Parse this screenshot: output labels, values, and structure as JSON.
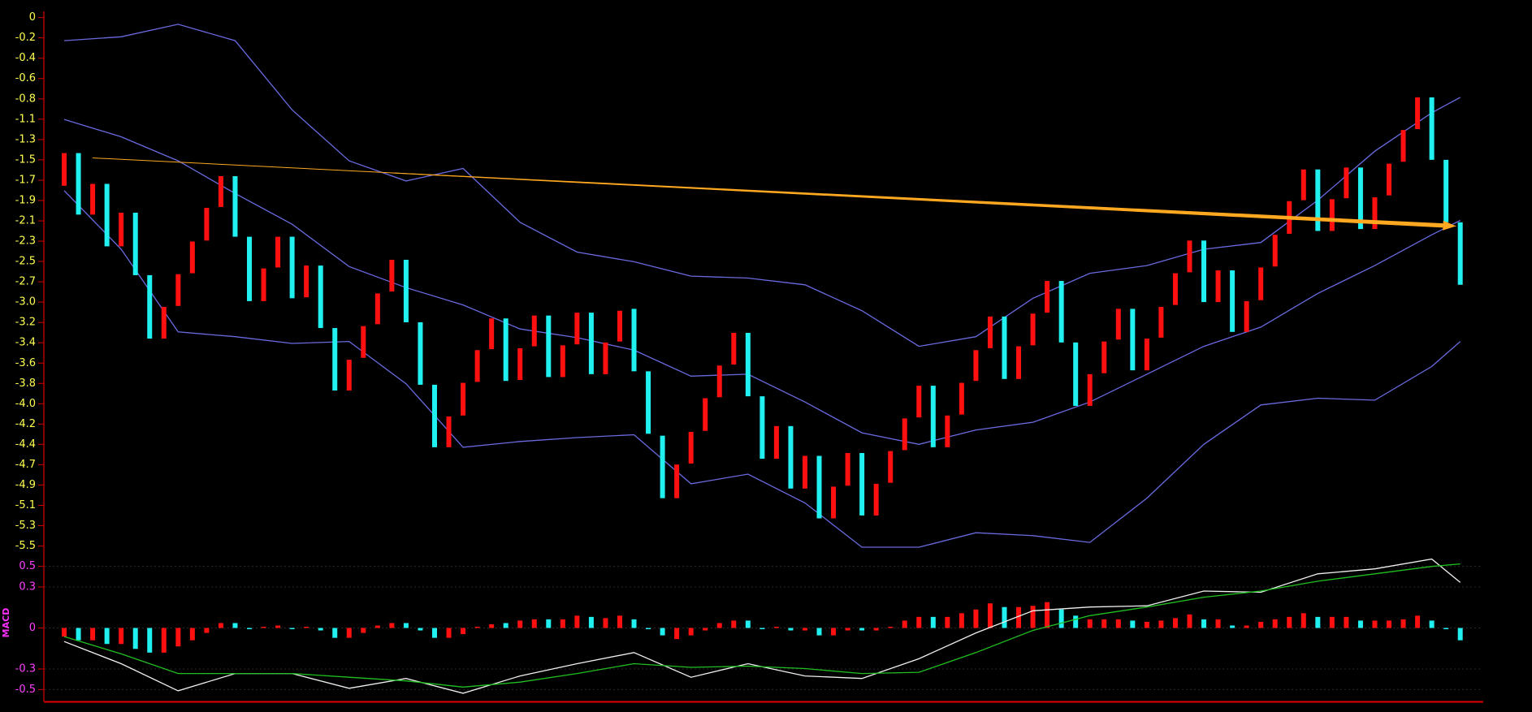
{
  "chart_data": [
    {
      "type": "candlestick",
      "xlim": [
        -0.8,
        99.5
      ],
      "ylim": [
        -5.7,
        0.1
      ],
      "yticks": [
        0,
        {
          "value": -0.211,
          "label": "-0.2"
        },
        {
          "value": -0.423,
          "label": "-0.4"
        },
        {
          "value": -0.634,
          "label": "-0.6"
        },
        {
          "value": -0.846,
          "label": "-0.8"
        },
        {
          "value": -1.057,
          "label": "-1.1"
        },
        {
          "value": -1.269,
          "label": "-1.3"
        },
        {
          "value": -1.48,
          "label": "-1.5"
        },
        {
          "value": -1.692,
          "label": "-1.7"
        },
        {
          "value": -1.903,
          "label": "-1.9"
        },
        {
          "value": -2.115,
          "label": "-2.1"
        },
        {
          "value": -2.326,
          "label": "-2.3"
        },
        {
          "value": -2.537,
          "label": "-2.5"
        },
        {
          "value": -2.749,
          "label": "-2.7"
        },
        {
          "value": -2.96,
          "label": "-3.0"
        },
        {
          "value": -3.172,
          "label": "-3.2"
        },
        {
          "value": -3.383,
          "label": "-3.4"
        },
        {
          "value": -3.595,
          "label": "-3.6"
        },
        {
          "value": -3.806,
          "label": "-3.8"
        },
        {
          "value": -4.018,
          "label": "-4.0"
        },
        {
          "value": -4.229,
          "label": "-4.2"
        },
        {
          "value": -4.44,
          "label": "-4.4"
        },
        {
          "value": -4.652,
          "label": "-4.7"
        },
        {
          "value": -4.863,
          "label": "-4.9"
        },
        {
          "value": -5.075,
          "label": "-5.1"
        },
        {
          "value": -5.286,
          "label": "-5.3"
        },
        {
          "value": -5.498,
          "label": "-5.5"
        }
      ],
      "tick_color": "#ffff50",
      "up_color": "#ff1010",
      "down_color": "#20f0f0",
      "open": [
        -1.75,
        -1.41,
        -2.05,
        -1.73,
        -2.38,
        -2.03,
        -2.68,
        -3.34,
        -3.0,
        -2.66,
        -2.32,
        -1.97,
        -1.65,
        -2.28,
        -2.95,
        -2.6,
        -2.28,
        -2.91,
        -2.58,
        -3.23,
        -3.88,
        -3.54,
        -3.19,
        -2.85,
        -2.52,
        -3.17,
        -3.82,
        -4.47,
        -4.14,
        -3.79,
        -3.45,
        -3.13,
        -3.77,
        -3.42,
        -3.1,
        -3.74,
        -3.4,
        -3.07,
        -3.71,
        -3.37,
        -3.03,
        -3.68,
        -4.35,
        -5.0,
        -4.64,
        -4.3,
        -3.95,
        -3.61,
        -3.28,
        -3.94,
        -4.59,
        -4.25,
        -4.9,
        -4.56,
        -5.21,
        -4.87,
        -4.53,
        -5.18,
        -4.84,
        -4.5,
        -4.16,
        -3.83,
        -4.47,
        -4.13,
        -3.78,
        -3.44,
        -3.11,
        -3.76,
        -3.41,
        -3.07,
        -2.74,
        -3.38,
        -4.04,
        -3.7,
        -3.35,
        -3.03,
        -3.67,
        -3.33,
        -2.99,
        -2.65,
        -2.32,
        -2.96,
        -2.63,
        -3.27,
        -2.94,
        -2.59,
        -2.25,
        -1.9,
        -1.58,
        -2.22,
        -1.88,
        -1.56,
        -2.2,
        -1.85,
        -1.5,
        -1.16,
        -0.83,
        -1.48,
        -2.13
      ],
      "close": [
        -1.41,
        -2.05,
        -1.73,
        -2.38,
        -2.03,
        -2.68,
        -3.34,
        -3.01,
        -2.67,
        -2.33,
        -1.98,
        -1.65,
        -2.28,
        -2.95,
        -2.61,
        -2.28,
        -2.92,
        -2.58,
        -3.23,
        -3.88,
        -3.56,
        -3.21,
        -2.87,
        -2.52,
        -3.17,
        -3.82,
        -4.47,
        -4.15,
        -3.8,
        -3.46,
        -3.13,
        -3.78,
        -3.44,
        -3.1,
        -3.74,
        -3.41,
        -3.07,
        -3.71,
        -3.38,
        -3.05,
        -3.68,
        -4.33,
        -5.0,
        -4.65,
        -4.31,
        -3.96,
        -3.62,
        -3.28,
        -3.94,
        -4.59,
        -4.25,
        -4.9,
        -4.56,
        -5.21,
        -4.88,
        -4.53,
        -5.18,
        -4.85,
        -4.51,
        -4.17,
        -3.83,
        -4.47,
        -4.14,
        -3.8,
        -3.46,
        -3.11,
        -3.76,
        -3.42,
        -3.08,
        -2.74,
        -3.38,
        -4.04,
        -3.71,
        -3.37,
        -3.03,
        -3.67,
        -3.34,
        -3.01,
        -2.66,
        -2.32,
        -2.96,
        -2.63,
        -3.27,
        -2.95,
        -2.6,
        -2.26,
        -1.91,
        -1.58,
        -2.22,
        -1.89,
        -1.56,
        -2.2,
        -1.87,
        -1.52,
        -1.17,
        -0.83,
        -1.48,
        -2.13,
        -2.78
      ],
      "series": [
        {
          "color": "#6a6ae0",
          "x": [
            0,
            4,
            8,
            12,
            16,
            20,
            24,
            28,
            32,
            36,
            40,
            44,
            48,
            52,
            56,
            60,
            64,
            68,
            72,
            76,
            80,
            84,
            88,
            92,
            96,
            98
          ],
          "values": [
            -0.24,
            -0.2,
            -0.07,
            -0.24,
            -0.96,
            -1.49,
            -1.7,
            -1.57,
            -2.13,
            -2.44,
            -2.54,
            -2.69,
            -2.71,
            -2.78,
            -3.05,
            -3.42,
            -3.32,
            -2.92,
            -2.66,
            -2.58,
            -2.41,
            -2.34,
            -1.9,
            -1.39,
            -0.99,
            -0.83
          ]
        },
        {
          "color": "#6a6ae0",
          "x": [
            0,
            4,
            8,
            12,
            16,
            20,
            24,
            28,
            32,
            36,
            40,
            44,
            48,
            52,
            56,
            60,
            64,
            68,
            72,
            76,
            80,
            84,
            88,
            92,
            96,
            98
          ],
          "values": [
            -1.06,
            -1.24,
            -1.49,
            -1.83,
            -2.15,
            -2.59,
            -2.81,
            -2.99,
            -3.24,
            -3.33,
            -3.46,
            -3.73,
            -3.71,
            -4.0,
            -4.32,
            -4.44,
            -4.29,
            -4.21,
            -4.0,
            -3.71,
            -3.42,
            -3.22,
            -2.87,
            -2.58,
            -2.26,
            -2.11
          ]
        },
        {
          "color": "#6a6ae0",
          "x": [
            0,
            4,
            8,
            12,
            16,
            20,
            24,
            28,
            32,
            36,
            40,
            44,
            48,
            52,
            56,
            60,
            64,
            68,
            72,
            76,
            80,
            84,
            88,
            92,
            96,
            98
          ],
          "values": [
            -1.8,
            -2.41,
            -3.27,
            -3.32,
            -3.39,
            -3.37,
            -3.81,
            -4.47,
            -4.41,
            -4.37,
            -4.34,
            -4.85,
            -4.75,
            -5.05,
            -5.51,
            -5.51,
            -5.36,
            -5.39,
            -5.46,
            -5.0,
            -4.44,
            -4.03,
            -3.96,
            -3.98,
            -3.63,
            -3.37
          ]
        }
      ],
      "trendline": {
        "x": [
          2,
          97.7
        ],
        "values": [
          -1.46,
          -2.17
        ],
        "color": "#ffa820"
      }
    },
    {
      "type": "macd",
      "label": "MACD",
      "label_color": "#ff30ff",
      "tick_color": "#ff40ff",
      "grid": true,
      "xlim": [
        -0.8,
        99.5
      ],
      "ylim": [
        -0.6,
        0.6
      ],
      "yticks": [
        0.5,
        {
          "value": 0.333,
          "label": "0.3"
        },
        0,
        {
          "value": -0.333,
          "label": "-0.3"
        },
        -0.5
      ],
      "values": [
        -0.07,
        -0.1,
        -0.1,
        -0.13,
        -0.13,
        -0.17,
        -0.2,
        -0.2,
        -0.15,
        -0.1,
        -0.04,
        0.04,
        0.04,
        -0.01,
        0.01,
        0.02,
        -0.01,
        0.01,
        -0.02,
        -0.08,
        -0.08,
        -0.04,
        0.02,
        0.04,
        0.04,
        -0.02,
        -0.08,
        -0.08,
        -0.05,
        0.01,
        0.03,
        0.04,
        0.06,
        0.07,
        0.07,
        0.07,
        0.1,
        0.09,
        0.08,
        0.1,
        0.07,
        -0.01,
        -0.06,
        -0.09,
        -0.06,
        -0.02,
        0.04,
        0.06,
        0.06,
        -0.01,
        0.01,
        -0.02,
        -0.02,
        -0.06,
        -0.06,
        -0.02,
        -0.02,
        -0.02,
        0.01,
        0.06,
        0.09,
        0.09,
        0.09,
        0.12,
        0.15,
        0.2,
        0.17,
        0.17,
        0.18,
        0.21,
        0.15,
        0.1,
        0.07,
        0.07,
        0.07,
        0.06,
        0.05,
        0.06,
        0.08,
        0.11,
        0.07,
        0.07,
        0.02,
        0.02,
        0.05,
        0.07,
        0.09,
        0.12,
        0.09,
        0.09,
        0.09,
        0.06,
        0.06,
        0.06,
        0.07,
        0.1,
        0.06,
        -0.01,
        -0.1
      ],
      "series": [
        {
          "color": "#f0f0f0",
          "x": [
            0,
            4,
            8,
            12,
            16,
            20,
            24,
            28,
            32,
            36,
            40,
            44,
            48,
            52,
            56,
            60,
            64,
            68,
            72,
            76,
            80,
            84,
            88,
            92,
            96,
            98
          ],
          "values": [
            -0.11,
            -0.29,
            -0.51,
            -0.37,
            -0.37,
            -0.49,
            -0.41,
            -0.53,
            -0.39,
            -0.29,
            -0.2,
            -0.4,
            -0.29,
            -0.39,
            -0.41,
            -0.25,
            -0.04,
            0.14,
            0.17,
            0.18,
            0.3,
            0.29,
            0.44,
            0.48,
            0.56,
            0.37
          ]
        },
        {
          "color": "#20c020",
          "x": [
            0,
            4,
            8,
            12,
            16,
            20,
            24,
            28,
            32,
            36,
            40,
            44,
            48,
            52,
            56,
            60,
            64,
            68,
            72,
            76,
            80,
            84,
            88,
            92,
            96,
            98
          ],
          "values": [
            -0.07,
            -0.21,
            -0.37,
            -0.37,
            -0.37,
            -0.4,
            -0.43,
            -0.48,
            -0.44,
            -0.37,
            -0.29,
            -0.32,
            -0.31,
            -0.33,
            -0.37,
            -0.36,
            -0.2,
            -0.02,
            0.1,
            0.17,
            0.25,
            0.3,
            0.38,
            0.44,
            0.5,
            0.52
          ]
        }
      ]
    }
  ]
}
